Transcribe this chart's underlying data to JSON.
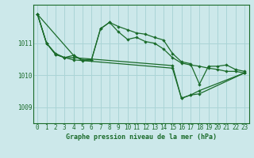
{
  "title": "Graphe pression niveau de la mer (hPa)",
  "bg_color": "#cce8ea",
  "grid_color": "#aad4d6",
  "line_color": "#1a6b2a",
  "xlim": [
    -0.5,
    23.5
  ],
  "ylim": [
    1008.5,
    1012.2
  ],
  "yticks": [
    1009,
    1010,
    1011
  ],
  "xticks": [
    0,
    1,
    2,
    3,
    4,
    5,
    6,
    7,
    8,
    9,
    10,
    11,
    12,
    13,
    14,
    15,
    16,
    17,
    18,
    19,
    20,
    21,
    22,
    23
  ],
  "series": [
    {
      "x": [
        0,
        1,
        2,
        3,
        4,
        5,
        6,
        7,
        8,
        9,
        10,
        11,
        12,
        13,
        14,
        15,
        16,
        17,
        18,
        19,
        20,
        21,
        22,
        23
      ],
      "y": [
        1011.9,
        1011.0,
        1010.65,
        1010.55,
        1010.62,
        1010.45,
        1010.48,
        1011.45,
        1011.65,
        1011.35,
        1011.12,
        1011.18,
        1011.05,
        1011.0,
        1010.82,
        1010.55,
        1010.38,
        1010.32,
        1010.28,
        1010.22,
        1010.18,
        1010.12,
        1010.12,
        1010.07
      ]
    },
    {
      "x": [
        0,
        1,
        2,
        3,
        4,
        15,
        16,
        17,
        18,
        23
      ],
      "y": [
        1011.9,
        1011.0,
        1010.65,
        1010.55,
        1010.55,
        1010.3,
        1009.28,
        1009.38,
        1009.52,
        1010.07
      ]
    },
    {
      "x": [
        0,
        1,
        2,
        3,
        4,
        15,
        16,
        17,
        18,
        23
      ],
      "y": [
        1011.9,
        1011.0,
        1010.68,
        1010.55,
        1010.48,
        1010.22,
        1009.28,
        1009.38,
        1009.42,
        1010.07
      ]
    },
    {
      "x": [
        0,
        4,
        5,
        6,
        7,
        8,
        9,
        10,
        11,
        12,
        13,
        14,
        15,
        16,
        17,
        18,
        19,
        20,
        21,
        22,
        23
      ],
      "y": [
        1011.9,
        1010.62,
        1010.48,
        1010.48,
        1011.45,
        1011.65,
        1011.52,
        1011.42,
        1011.32,
        1011.28,
        1011.18,
        1011.1,
        1010.68,
        1010.42,
        1010.36,
        1009.72,
        1010.28,
        1010.28,
        1010.32,
        1010.18,
        1010.12
      ]
    }
  ]
}
